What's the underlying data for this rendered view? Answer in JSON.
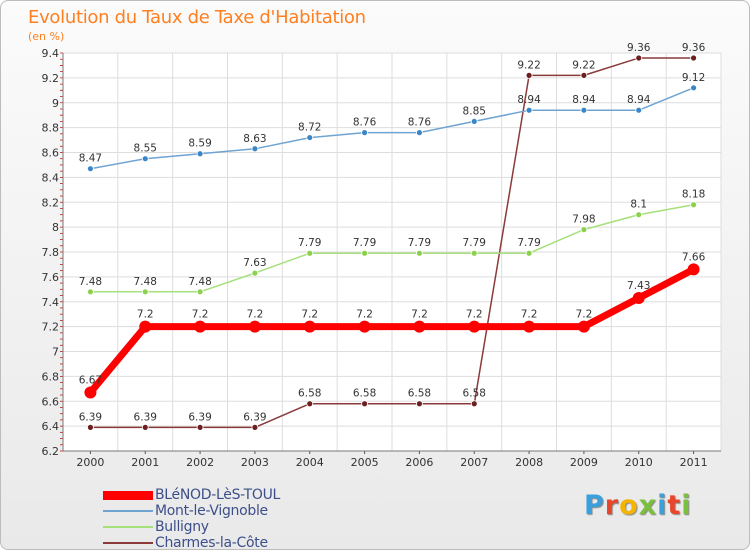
{
  "title": "Evolution du Taux de Taxe d'Habitation",
  "unit": "(en %)",
  "logo": {
    "text": "Proxiti",
    "colors": [
      "#3aa0dc",
      "#e8462a",
      "#f5b400",
      "#7bbf3e",
      "#3aa0dc",
      "#e8462a",
      "#7bbf3e"
    ]
  },
  "chart_data": {
    "type": "line",
    "categories": [
      "2000",
      "2001",
      "2002",
      "2003",
      "2004",
      "2005",
      "2006",
      "2007",
      "2008",
      "2009",
      "2010",
      "2011"
    ],
    "ylim": [
      6.2,
      9.4
    ],
    "yticks": [
      "6.2",
      "6.4",
      "6.6",
      "6.8",
      "7",
      "7.2",
      "7.4",
      "7.6",
      "7.8",
      "8",
      "8.2",
      "8.4",
      "8.6",
      "8.8",
      "9",
      "9.2",
      "9.4"
    ],
    "grid": true,
    "legend": "bottom-left",
    "series": [
      {
        "name": "BLéNOD-LèS-TOUL",
        "color": "#ff0000",
        "values": [
          6.67,
          7.2,
          7.2,
          7.2,
          7.2,
          7.2,
          7.2,
          7.2,
          7.2,
          7.2,
          7.43,
          7.66
        ],
        "labels": [
          "6.67",
          "7.2",
          "7.2",
          "7.2",
          "7.2",
          "7.2",
          "7.2",
          "7.2",
          "7.2",
          "7.2",
          "7.43",
          "7.66"
        ]
      },
      {
        "name": "Mont-le-Vignoble",
        "color": "#6fa3d1",
        "values": [
          8.47,
          8.55,
          8.59,
          8.63,
          8.72,
          8.76,
          8.76,
          8.85,
          8.94,
          8.94,
          8.94,
          9.12
        ],
        "labels": [
          "8.47",
          "8.55",
          "8.59",
          "8.63",
          "8.72",
          "8.76",
          "8.76",
          "8.85",
          "8.94",
          "8.94",
          "8.94",
          "9.12"
        ]
      },
      {
        "name": "Bulligny",
        "color": "#a6e07a",
        "values": [
          7.48,
          7.48,
          7.48,
          7.63,
          7.79,
          7.79,
          7.79,
          7.79,
          7.79,
          7.98,
          8.1,
          8.18
        ],
        "labels": [
          "7.48",
          "7.48",
          "7.48",
          "7.63",
          "7.79",
          "7.79",
          "7.79",
          "7.79",
          "7.79",
          "7.98",
          "8.1",
          "8.18"
        ]
      },
      {
        "name": "Charmes-la-Côte",
        "color": "#8b3a3a",
        "values": [
          6.39,
          6.39,
          6.39,
          6.39,
          6.58,
          6.58,
          6.58,
          6.58,
          9.22,
          9.22,
          9.36,
          9.36
        ],
        "labels": [
          "6.39",
          "6.39",
          "6.39",
          "6.39",
          "6.58",
          "6.58",
          "6.58",
          "6.58",
          "9.22",
          "9.22",
          "9.36",
          "9.36"
        ]
      }
    ]
  }
}
